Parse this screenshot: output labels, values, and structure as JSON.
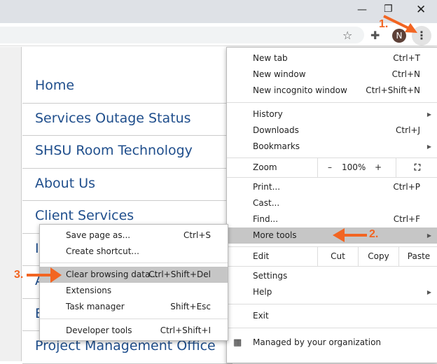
{
  "window": {
    "minimize_icon": "minimize-icon",
    "restore_icon": "restore-icon",
    "close_icon": "close-icon"
  },
  "toolbar": {
    "avatar_letter": "N",
    "avatar_color": "#5d4037"
  },
  "nav": [
    "Home",
    "Services Outage Status",
    "SHSU Room Technology",
    "About Us",
    "Client Services",
    "I",
    "A",
    "E",
    "Project Management Office"
  ],
  "menu": {
    "new_tab": "New tab",
    "new_tab_sc": "Ctrl+T",
    "new_window": "New window",
    "new_window_sc": "Ctrl+N",
    "incognito": "New incognito window",
    "incognito_sc": "Ctrl+Shift+N",
    "history": "History",
    "downloads": "Downloads",
    "downloads_sc": "Ctrl+J",
    "bookmarks": "Bookmarks",
    "zoom": "Zoom",
    "zoom_minus": "–",
    "zoom_value": "100%",
    "zoom_plus": "+",
    "print": "Print...",
    "print_sc": "Ctrl+P",
    "cast": "Cast...",
    "find": "Find...",
    "find_sc": "Ctrl+F",
    "more_tools": "More tools",
    "edit": "Edit",
    "cut": "Cut",
    "copy": "Copy",
    "paste": "Paste",
    "settings": "Settings",
    "help": "Help",
    "exit": "Exit",
    "managed": "Managed by your organization"
  },
  "submenu": {
    "save": "Save page as...",
    "save_sc": "Ctrl+S",
    "shortcut": "Create shortcut...",
    "clear": "Clear browsing data...",
    "clear_sc": "Ctrl+Shift+Del",
    "extensions": "Extensions",
    "task": "Task manager",
    "task_sc": "Shift+Esc",
    "dev": "Developer tools",
    "dev_sc": "Ctrl+Shift+I"
  },
  "annotations": {
    "step1": "1.",
    "step2": "2.",
    "step3": "3.",
    "color": "#f26522"
  }
}
